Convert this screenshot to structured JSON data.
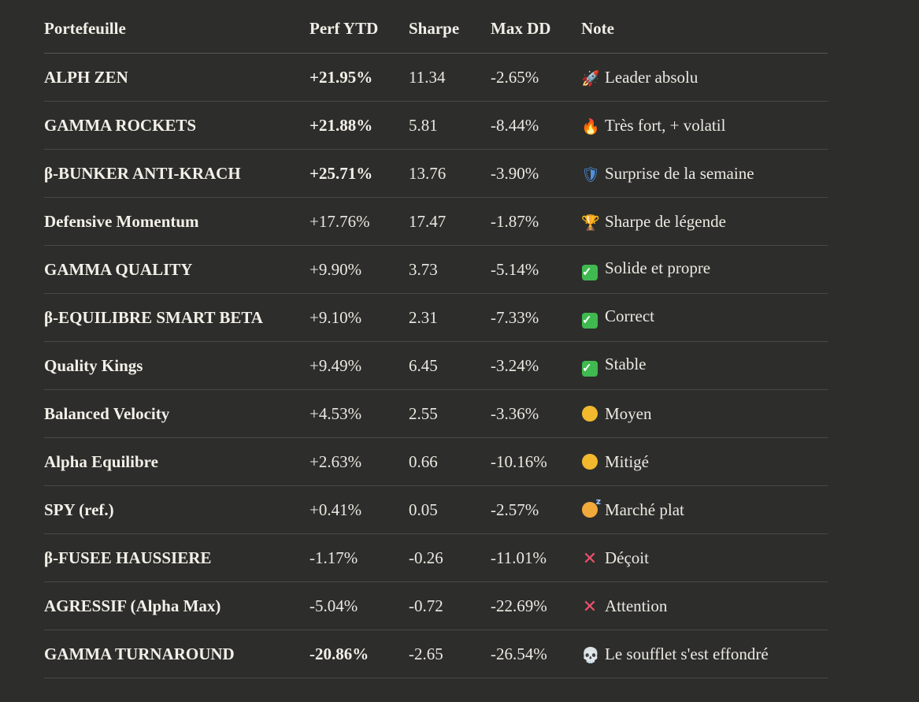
{
  "table": {
    "headers": [
      "Portefeuille",
      "Perf YTD",
      "Sharpe",
      "Max DD",
      "Note"
    ],
    "rows": [
      {
        "name": "ALPH ZEN",
        "perf": "+21.95%",
        "perf_bold": true,
        "sharpe": "11.34",
        "maxdd": "-2.65%",
        "icon": "rocket-icon",
        "note": "Leader absolu"
      },
      {
        "name": "GAMMA ROCKETS",
        "perf": "+21.88%",
        "perf_bold": true,
        "sharpe": "5.81",
        "maxdd": "-8.44%",
        "icon": "fire-icon",
        "note": "Très fort, + volatil"
      },
      {
        "name": "β-BUNKER ANTI-KRACH",
        "perf": "+25.71%",
        "perf_bold": true,
        "sharpe": "13.76",
        "maxdd": "-3.90%",
        "icon": "shield-icon",
        "note": "Surprise de la semaine"
      },
      {
        "name": "Defensive Momentum",
        "perf": "+17.76%",
        "perf_bold": false,
        "sharpe": "17.47",
        "maxdd": "-1.87%",
        "icon": "trophy-icon",
        "note": "Sharpe de légende"
      },
      {
        "name": "GAMMA QUALITY",
        "perf": "+9.90%",
        "perf_bold": false,
        "sharpe": "3.73",
        "maxdd": "-5.14%",
        "icon": "check-mark-icon",
        "note": "Solide et propre"
      },
      {
        "name": "β-EQUILIBRE SMART BETA",
        "perf": "+9.10%",
        "perf_bold": false,
        "sharpe": "2.31",
        "maxdd": "-7.33%",
        "icon": "check-mark-icon",
        "note": "Correct"
      },
      {
        "name": "Quality Kings",
        "perf": "+9.49%",
        "perf_bold": false,
        "sharpe": "6.45",
        "maxdd": "-3.24%",
        "icon": "check-mark-icon",
        "note": "Stable"
      },
      {
        "name": "Balanced Velocity",
        "perf": "+4.53%",
        "perf_bold": false,
        "sharpe": "2.55",
        "maxdd": "-3.36%",
        "icon": "yellow-circle-icon",
        "note": "Moyen"
      },
      {
        "name": "Alpha Equilibre",
        "perf": "+2.63%",
        "perf_bold": false,
        "sharpe": "0.66",
        "maxdd": "-10.16%",
        "icon": "yellow-circle-icon",
        "note": "Mitigé"
      },
      {
        "name": "SPY (ref.)",
        "perf": "+0.41%",
        "perf_bold": false,
        "sharpe": "0.05",
        "maxdd": "-2.57%",
        "icon": "sleepy-face-icon",
        "note": "Marché plat"
      },
      {
        "name": "β-FUSEE HAUSSIERE",
        "perf": "-1.17%",
        "perf_bold": false,
        "sharpe": "-0.26",
        "maxdd": "-11.01%",
        "icon": "cross-mark-icon",
        "note": "Déçoit"
      },
      {
        "name": "AGRESSIF (Alpha Max)",
        "perf": "-5.04%",
        "perf_bold": false,
        "sharpe": "-0.72",
        "maxdd": "-22.69%",
        "icon": "cross-mark-icon",
        "note": "Attention"
      },
      {
        "name": "GAMMA TURNAROUND",
        "perf": "-20.86%",
        "perf_bold": true,
        "sharpe": "-2.65",
        "maxdd": "-26.54%",
        "icon": "skull-icon",
        "note": "Le soufflet s'est effondré"
      }
    ]
  }
}
